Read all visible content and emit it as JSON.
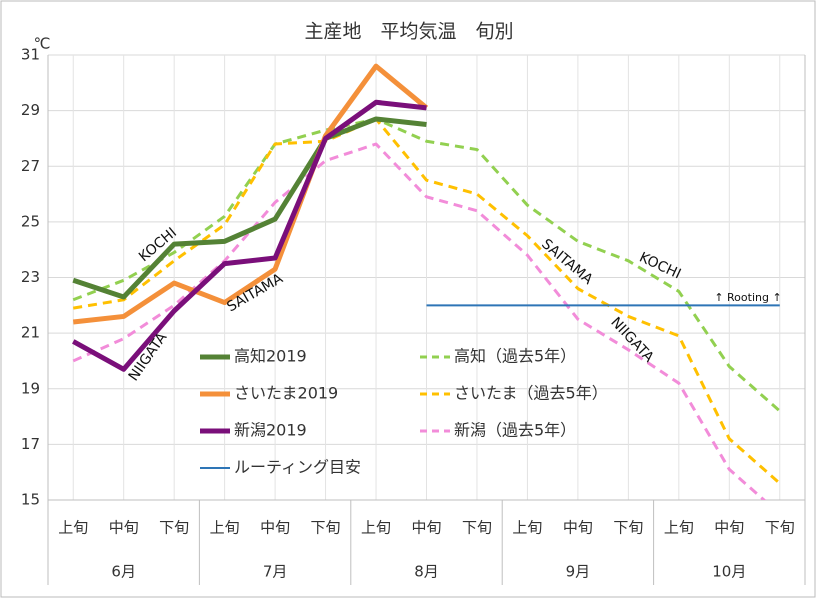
{
  "chart_data": {
    "type": "line",
    "title": "主産地　平均気温　旬別",
    "y_label": "℃",
    "categories": [
      "上旬",
      "中旬",
      "下旬",
      "上旬",
      "中旬",
      "下旬",
      "上旬",
      "中旬",
      "下旬",
      "上旬",
      "中旬",
      "下旬",
      "上旬",
      "中旬",
      "下旬"
    ],
    "months": [
      "6月",
      "7月",
      "8月",
      "9月",
      "10月"
    ],
    "ylim": [
      15,
      31
    ],
    "yticks": [
      15,
      17,
      19,
      21,
      23,
      25,
      27,
      29,
      31
    ],
    "grid": true,
    "series": [
      {
        "name": "高知2019",
        "color": "#548235",
        "style": "solid",
        "values": [
          22.9,
          22.3,
          24.2,
          24.3,
          25.1,
          28.0,
          28.7,
          28.5,
          null,
          null,
          null,
          null,
          null,
          null,
          null
        ]
      },
      {
        "name": "高知（過去5年）",
        "color": "#92d050",
        "style": "dashed",
        "values": [
          22.2,
          22.9,
          23.9,
          25.2,
          27.8,
          28.3,
          28.7,
          27.9,
          27.6,
          25.6,
          24.3,
          23.6,
          22.5,
          19.8,
          18.2
        ]
      },
      {
        "name": "さいたま2019",
        "color": "#f4903a",
        "style": "solid",
        "values": [
          21.4,
          21.6,
          22.8,
          22.1,
          23.3,
          28.1,
          30.6,
          29.1,
          null,
          null,
          null,
          null,
          null,
          null,
          null
        ]
      },
      {
        "name": "さいたま（過去5年）",
        "color": "#ffc000",
        "style": "dashed",
        "values": [
          21.9,
          22.2,
          23.6,
          24.9,
          27.8,
          27.9,
          28.7,
          26.5,
          26.0,
          24.5,
          22.6,
          21.6,
          20.9,
          17.2,
          15.6
        ]
      },
      {
        "name": "新潟2019",
        "color": "#7a0f7a",
        "style": "solid",
        "values": [
          20.7,
          19.7,
          21.8,
          23.5,
          23.7,
          28.0,
          29.3,
          29.1,
          null,
          null,
          null,
          null,
          null,
          null,
          null
        ]
      },
      {
        "name": "新潟（過去5年）",
        "color": "#f28cd9",
        "style": "dashed",
        "values": [
          20.0,
          20.8,
          22.0,
          23.6,
          25.7,
          27.2,
          27.8,
          25.9,
          25.4,
          23.8,
          21.5,
          20.4,
          19.2,
          16.1,
          14.5
        ]
      },
      {
        "name": "ルーティング目安",
        "color": "#2e75b6",
        "style": "thin",
        "values": [
          null,
          null,
          null,
          null,
          null,
          null,
          null,
          22,
          22,
          22,
          22,
          22,
          22,
          22,
          22
        ]
      }
    ],
    "annotations": [
      "KOCHI",
      "SAITAMA",
      "NIIGATA",
      "SAITAMA",
      "KOCHI",
      "NIIGATA",
      "↑ Rooting ↑"
    ]
  }
}
